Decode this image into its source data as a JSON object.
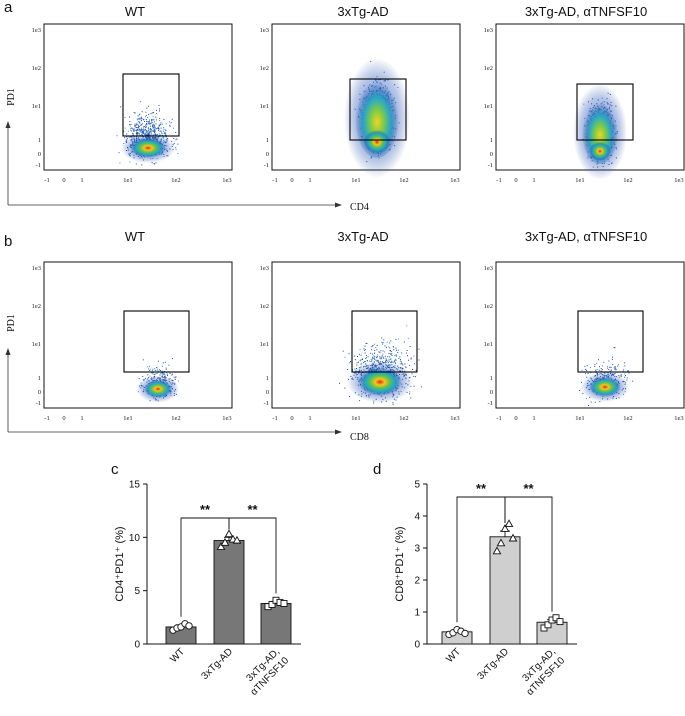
{
  "figure": {
    "panel_a": "a",
    "panel_b": "b",
    "panel_c": "c",
    "panel_d": "d",
    "flow_titles": [
      "WT",
      "3xTg-AD",
      "3xTg-AD, αTNFSF10"
    ],
    "row_a_xlabel": "CD4",
    "row_b_xlabel": "CD8",
    "flow_ylabel": "PD1",
    "flow_ticks_y": [
      "1e3",
      "1e2",
      "1e1",
      "1",
      "0",
      "-1"
    ],
    "flow_ticks_x": [
      "-1",
      "0",
      "1",
      "1e1",
      "1e2",
      "1e3"
    ],
    "colors": {
      "bar_dark": "#777777",
      "bar_light": "#cfcfcf",
      "axis": "#111111"
    }
  },
  "chart_data": [
    {
      "type": "bar",
      "panel": "c",
      "title": "",
      "ylabel": "CD4⁺PD1⁺ (%)",
      "ylim": [
        0,
        15
      ],
      "yticks": [
        "0",
        "5",
        "10",
        "15"
      ],
      "categories": [
        "WT",
        "3xTg-AD",
        "3xTg-AD,"
      ],
      "category_line2": [
        "",
        "",
        "αTNFSF10"
      ],
      "values": [
        1.6,
        9.7,
        3.8
      ],
      "errors": [
        0.2,
        0.3,
        0.2
      ],
      "points": [
        [
          1.3,
          1.5,
          1.6,
          1.9,
          1.7
        ],
        [
          9.1,
          9.5,
          10.3,
          9.8,
          9.7
        ],
        [
          3.5,
          3.7,
          4.1,
          3.9,
          3.8
        ]
      ],
      "markers": [
        "circle",
        "triangle",
        "square"
      ],
      "significance": [
        {
          "from": 0,
          "to": 1,
          "label": "**"
        },
        {
          "from": 1,
          "to": 2,
          "label": "**"
        }
      ]
    },
    {
      "type": "bar",
      "panel": "d",
      "title": "",
      "ylabel": "CD8⁺PD1⁺ (%)",
      "ylim": [
        0,
        5
      ],
      "yticks": [
        "0",
        "1",
        "2",
        "3",
        "4",
        "5"
      ],
      "categories": [
        "WT",
        "3xTg-AD",
        "3xTg-AD,"
      ],
      "category_line2": [
        "",
        "",
        "αTNFSF10"
      ],
      "values": [
        0.38,
        3.35,
        0.68
      ],
      "errors": [
        0.05,
        0.18,
        0.08
      ],
      "points": [
        [
          0.3,
          0.35,
          0.45,
          0.4,
          0.33
        ],
        [
          2.9,
          3.15,
          3.6,
          3.75,
          3.3
        ],
        [
          0.5,
          0.6,
          0.75,
          0.82,
          0.7
        ]
      ],
      "markers": [
        "circle",
        "triangle",
        "square"
      ],
      "significance": [
        {
          "from": 0,
          "to": 1,
          "label": "**"
        },
        {
          "from": 1,
          "to": 2,
          "label": "**"
        }
      ]
    }
  ]
}
